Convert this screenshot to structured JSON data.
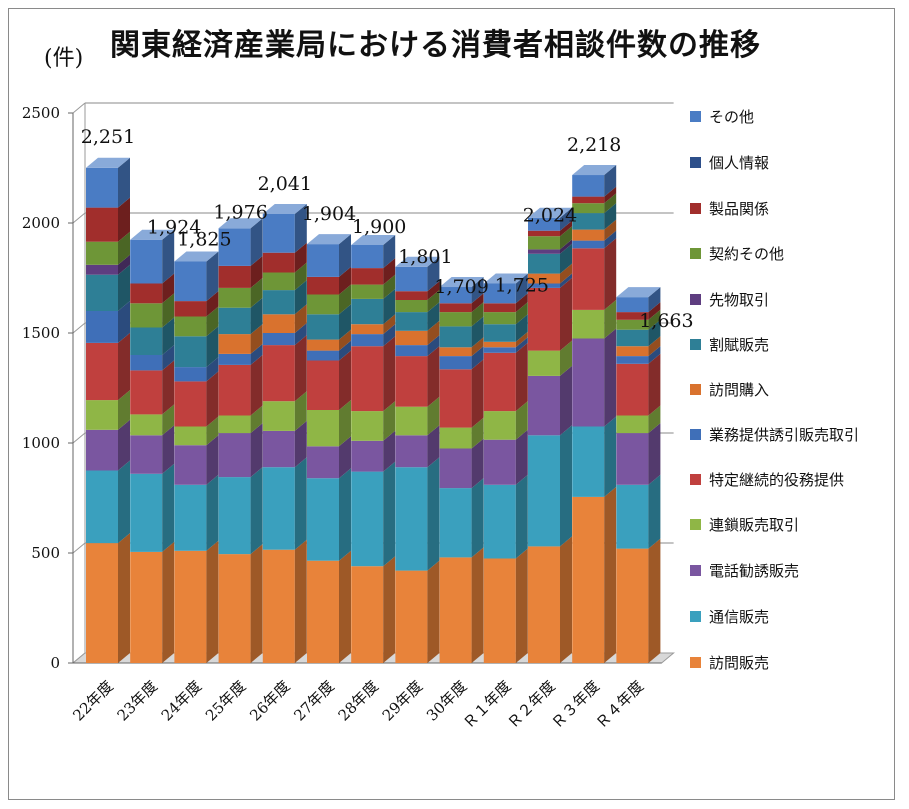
{
  "chart_data": {
    "type": "bar",
    "stacked": true,
    "three_d": true,
    "title": "関東経済産業局における消費者相談件数の推移",
    "unit_label": "(件)",
    "xlabel": "",
    "ylabel": "",
    "ylim": [
      0,
      2500
    ],
    "yticks": [
      0,
      500,
      1000,
      1500,
      2000,
      2500
    ],
    "grid": true,
    "legend_position": "right",
    "categories": [
      "22年度",
      "23年度",
      "24年度",
      "25年度",
      "26年度",
      "27年度",
      "28年度",
      "29年度",
      "30年度",
      "Ｒ１年度",
      "Ｒ２年度",
      "Ｒ３年度",
      "Ｒ４年度"
    ],
    "totals": [
      "2,251",
      "1,924",
      "1,825",
      "1,976",
      "2,041",
      "1,904",
      "1,900",
      "1,801",
      "1,709",
      "1,725",
      "2,024",
      "2,218",
      "1,663"
    ],
    "series": [
      {
        "name": "訪問販売",
        "color": "#E8833A",
        "values": [
          545,
          505,
          510,
          495,
          515,
          465,
          440,
          420,
          480,
          475,
          530,
          755,
          520
        ]
      },
      {
        "name": "通信販売",
        "color": "#3AA0BE",
        "values": [
          330,
          355,
          300,
          350,
          375,
          375,
          430,
          470,
          315,
          335,
          505,
          320,
          290
        ]
      },
      {
        "name": "電話勧誘販売",
        "color": "#7A56A0",
        "values": [
          185,
          175,
          180,
          200,
          165,
          145,
          140,
          145,
          180,
          205,
          270,
          400,
          235
        ]
      },
      {
        "name": "連鎖販売取引",
        "color": "#8FB646",
        "values": [
          135,
          95,
          85,
          80,
          135,
          165,
          135,
          130,
          95,
          130,
          115,
          130,
          80
        ]
      },
      {
        "name": "特定継続的役務提供",
        "color": "#C0403E",
        "values": [
          260,
          200,
          205,
          230,
          255,
          225,
          295,
          230,
          265,
          265,
          285,
          280,
          235
        ]
      },
      {
        "name": "業務提供誘引販売取引",
        "color": "#3F6FB8",
        "values": [
          145,
          70,
          65,
          50,
          55,
          45,
          55,
          50,
          60,
          25,
          20,
          35,
          35
        ]
      },
      {
        "name": "訪問購入",
        "color": "#D9722E",
        "values": [
          0,
          0,
          0,
          90,
          85,
          50,
          45,
          65,
          40,
          25,
          45,
          50,
          45
        ]
      },
      {
        "name": "割賦販売",
        "color": "#2E7F96",
        "values": [
          165,
          125,
          140,
          120,
          110,
          115,
          115,
          85,
          95,
          80,
          90,
          75,
          75
        ]
      },
      {
        "name": "先物取引",
        "color": "#5E3D80",
        "values": [
          45,
          0,
          0,
          0,
          0,
          0,
          0,
          0,
          0,
          0,
          20,
          0,
          0
        ]
      },
      {
        "name": "契約その他",
        "color": "#6E9637",
        "values": [
          105,
          110,
          90,
          90,
          80,
          90,
          65,
          55,
          65,
          55,
          60,
          45,
          45
        ]
      },
      {
        "name": "製品関係",
        "color": "#A12E2C",
        "values": [
          155,
          90,
          70,
          100,
          90,
          80,
          75,
          40,
          40,
          40,
          25,
          30,
          35
        ]
      },
      {
        "name": "個人情報",
        "color": "#2D4F8A",
        "values": [
          0,
          0,
          0,
          0,
          0,
          0,
          0,
          0,
          0,
          0,
          0,
          0,
          0
        ]
      },
      {
        "name": "その他",
        "color": "#4A7CC4",
        "values": [
          181,
          199,
          180,
          171,
          176,
          149,
          105,
          111,
          74,
          90,
          59,
          98,
          68
        ]
      }
    ]
  }
}
